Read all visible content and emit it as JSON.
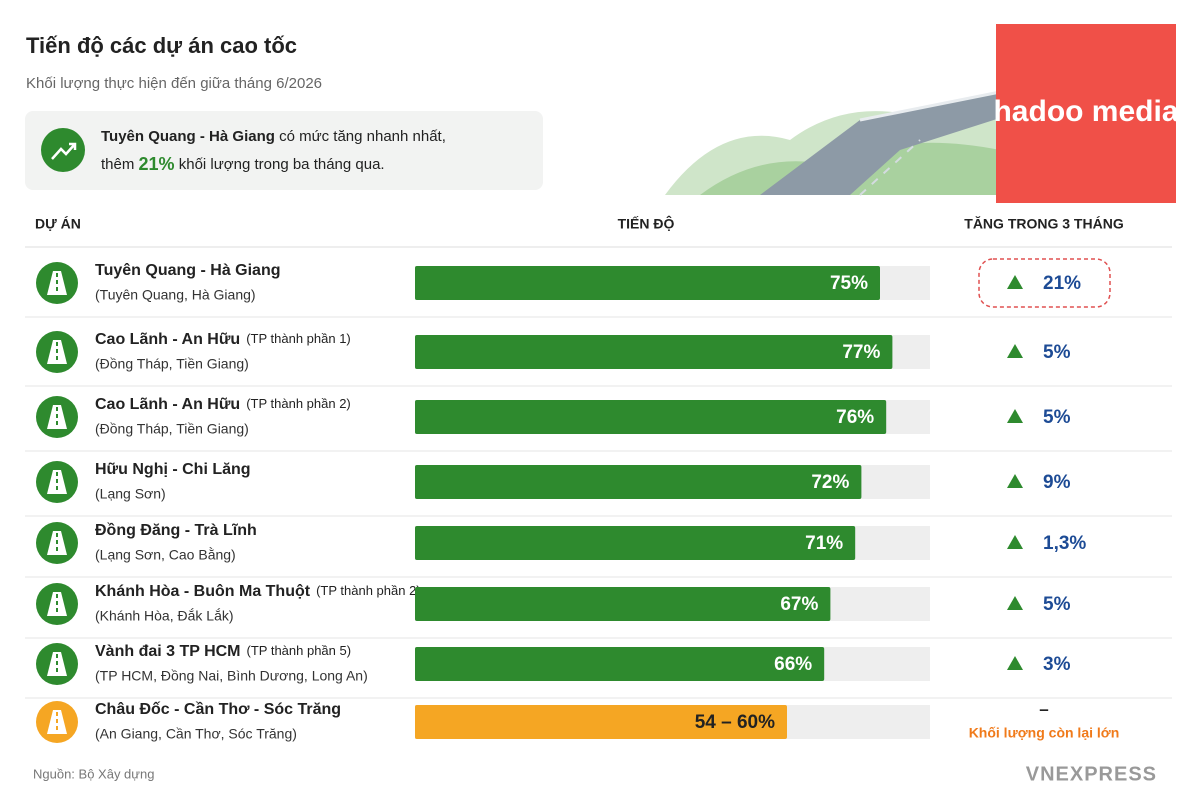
{
  "header": {
    "title": "Tiến độ các dự án cao tốc",
    "subtitle": "Khối lượng thực hiện đến giữa tháng 6/2026"
  },
  "callout": {
    "highlight": "Tuyên Quang - Hà Giang",
    "text1": "có mức tăng nhanh nhất,",
    "text2": "thêm",
    "value_label": "21%",
    "text3": "khối lượng trong ba tháng qua."
  },
  "columns": [
    "DỰ ÁN",
    "TIẾN ĐỘ",
    "TĂNG TRONG 3 THÁNG"
  ],
  "rows": [
    {
      "name": "Tuyên Quang - Hà Giang",
      "region": "(Tuyên Quang, Hà Giang)",
      "progress": 75,
      "progress_label": "75%",
      "increase": 21,
      "increase_label": "21%",
      "color": "#2e8a2e",
      "highlight": true
    },
    {
      "name": "Cao Lãnh - An Hữu",
      "phase": "(TP thành phần 1)",
      "region": "(Đồng Tháp, Tiền Giang)",
      "progress": 77,
      "progress_label": "77%",
      "increase": 5,
      "increase_label": "5%",
      "color": "#2e8a2e"
    },
    {
      "name": "Cao Lãnh - An Hữu",
      "phase": "(TP thành phần 2)",
      "region": "(Đồng Tháp, Tiền Giang)",
      "progress": 76,
      "progress_label": "76%",
      "increase": 5,
      "increase_label": "5%",
      "color": "#2e8a2e"
    },
    {
      "name": "Hữu Nghị - Chi Lăng",
      "region": "(Lạng Sơn)",
      "progress": 72,
      "progress_label": "72%",
      "increase": 9,
      "increase_label": "9%",
      "color": "#2e8a2e"
    },
    {
      "name": "Đồng Đăng - Trà Lĩnh",
      "region": "(Lạng Sơn, Cao Bằng)",
      "progress": 71,
      "progress_label": "71%",
      "increase": 1.3,
      "increase_label": "1,3%",
      "color": "#2e8a2e"
    },
    {
      "name": "Khánh Hòa - Buôn Ma Thuột",
      "phase": "(TP thành phần 2)",
      "region": "(Khánh Hòa, Đắk Lắk)",
      "progress": 67,
      "progress_label": "67%",
      "increase": 5,
      "increase_label": "5%",
      "color": "#2e8a2e"
    },
    {
      "name": "Vành đai 3 TP HCM",
      "phase": "(TP thành phần 5)",
      "region": "(TP HCM, Đồng Nai, Bình Dương, Long An)",
      "progress": 66,
      "progress_label": "66%",
      "increase": 3,
      "increase_label": "3%",
      "color": "#2e8a2e"
    },
    {
      "name": "Châu Đốc - Cần Thơ - Sóc Trăng",
      "region": "(An Giang, Cần Thơ, Sóc Trăng)",
      "progress": [
        54,
        60
      ],
      "progress_label": "54 – 60%",
      "increase_label": "–",
      "note": "Khối lượng còn lại lớn",
      "color": "#f5a623"
    }
  ],
  "source": "Nguồn: Bộ Xây dựng",
  "logo": "VNEXPRESS",
  "watermark": "hadoo media"
}
